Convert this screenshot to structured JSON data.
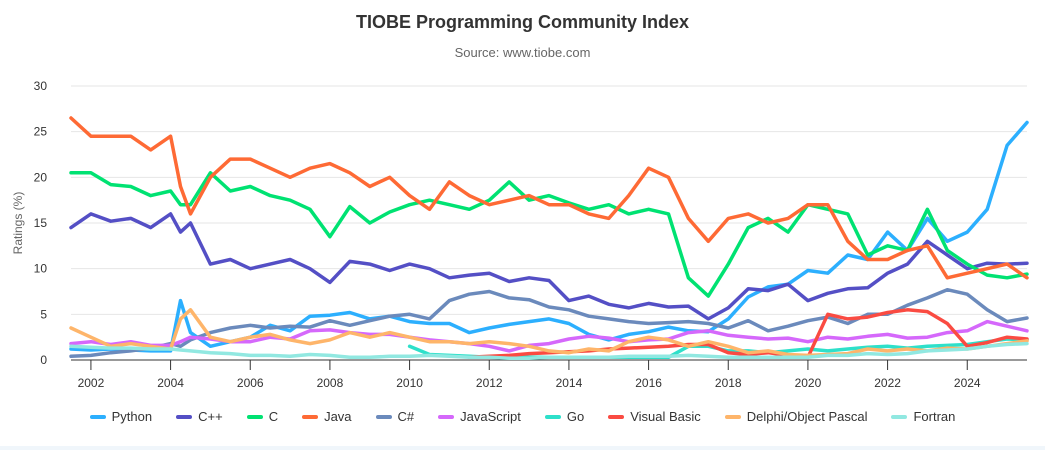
{
  "chart_data": {
    "type": "line",
    "title": "TIOBE Programming Community Index",
    "subtitle": "Source: www.tiobe.com",
    "xlabel": "",
    "ylabel": "Ratings (%)",
    "xlim": [
      2001.5,
      2025.5
    ],
    "ylim": [
      0,
      30
    ],
    "xticks": [
      2002,
      2004,
      2006,
      2008,
      2010,
      2012,
      2014,
      2016,
      2018,
      2020,
      2022,
      2024
    ],
    "yticks": [
      0,
      5,
      10,
      15,
      20,
      25,
      30
    ],
    "grid": true,
    "legend": "bottom",
    "x": [
      2001.5,
      2002,
      2002.5,
      2003,
      2003.5,
      2004,
      2004.25,
      2004.5,
      2005,
      2005.5,
      2006,
      2006.5,
      2007,
      2007.5,
      2008,
      2008.5,
      2009,
      2009.5,
      2010,
      2010.5,
      2011,
      2011.5,
      2012,
      2012.5,
      2013,
      2013.5,
      2014,
      2014.5,
      2015,
      2015.5,
      2016,
      2016.5,
      2017,
      2017.5,
      2018,
      2018.5,
      2019,
      2019.5,
      2020,
      2020.5,
      2021,
      2021.5,
      2022,
      2022.5,
      2023,
      2023.5,
      2024,
      2024.5,
      2025,
      2025.5
    ],
    "series": [
      {
        "name": "Python",
        "color": "#2caffe",
        "values": [
          1.2,
          1.1,
          1.2,
          1.1,
          1.0,
          1.0,
          6.5,
          3.0,
          1.5,
          2.0,
          2.5,
          3.8,
          3.2,
          4.8,
          4.9,
          5.2,
          4.5,
          4.8,
          4.2,
          4.0,
          4.0,
          3.0,
          3.5,
          3.9,
          4.2,
          4.5,
          4.0,
          2.8,
          2.2,
          2.8,
          3.1,
          3.6,
          3.2,
          3.1,
          4.5,
          6.9,
          8.0,
          8.3,
          9.8,
          9.5,
          11.5,
          11.0,
          14.0,
          12.0,
          15.5,
          13.0,
          14.0,
          16.5,
          23.5,
          26.0
        ]
      },
      {
        "name": "C++",
        "color": "#544fc5",
        "values": [
          14.5,
          16.0,
          15.2,
          15.5,
          14.5,
          16.0,
          14.0,
          15.0,
          10.5,
          11.0,
          10.0,
          10.5,
          11.0,
          10.0,
          8.5,
          10.8,
          10.5,
          9.8,
          10.5,
          10.0,
          9.0,
          9.3,
          9.5,
          8.6,
          9.0,
          8.7,
          6.5,
          7.0,
          6.1,
          5.7,
          6.2,
          5.8,
          5.9,
          4.5,
          5.7,
          7.8,
          7.6,
          8.3,
          6.5,
          7.3,
          7.8,
          7.9,
          9.5,
          10.5,
          13.0,
          11.5,
          10.0,
          10.6,
          10.5,
          10.6
        ]
      },
      {
        "name": "C",
        "color": "#00e272",
        "values": [
          20.5,
          20.5,
          19.2,
          19.0,
          18.0,
          18.5,
          17.0,
          17.0,
          20.5,
          18.5,
          19.0,
          18.0,
          17.5,
          16.5,
          13.5,
          16.8,
          15.0,
          16.2,
          17.0,
          17.5,
          17.0,
          16.5,
          17.5,
          19.5,
          17.5,
          18.0,
          17.2,
          16.5,
          17.0,
          16.0,
          16.5,
          16.0,
          9.0,
          7.0,
          10.5,
          14.5,
          15.5,
          14.0,
          17.0,
          16.5,
          16.0,
          11.5,
          12.5,
          12.0,
          16.5,
          12.0,
          10.5,
          9.3,
          9.0,
          9.4
        ]
      },
      {
        "name": "Java",
        "color": "#fe6a35",
        "values": [
          26.5,
          24.5,
          24.5,
          24.5,
          23.0,
          24.5,
          19.0,
          16.0,
          20.0,
          22.0,
          22.0,
          21.0,
          20.0,
          21.0,
          21.5,
          20.5,
          19.0,
          20.0,
          18.0,
          16.5,
          19.5,
          18.0,
          17.0,
          17.5,
          18.0,
          17.0,
          17.0,
          16.0,
          15.5,
          18.0,
          21.0,
          20.0,
          15.5,
          13.0,
          15.5,
          16.0,
          15.0,
          15.5,
          17.0,
          17.0,
          13.0,
          11.0,
          11.0,
          12.0,
          12.5,
          9.0,
          9.5,
          10.0,
          10.5,
          9.0
        ]
      },
      {
        "name": "C#",
        "color": "#6b8abc",
        "values": [
          0.4,
          0.5,
          0.8,
          1.0,
          1.3,
          1.8,
          1.5,
          2.2,
          3.0,
          3.5,
          3.8,
          3.5,
          3.7,
          3.6,
          4.3,
          3.8,
          4.3,
          4.8,
          5.0,
          4.5,
          6.5,
          7.2,
          7.5,
          6.8,
          6.6,
          5.8,
          5.5,
          4.8,
          4.5,
          4.2,
          4.0,
          4.1,
          4.2,
          4.0,
          3.5,
          4.3,
          3.2,
          3.7,
          4.3,
          4.7,
          4.0,
          5.0,
          5.0,
          6.0,
          6.8,
          7.7,
          7.2,
          5.5,
          4.2,
          4.6
        ]
      },
      {
        "name": "JavaScript",
        "color": "#d568fb",
        "values": [
          1.8,
          2.0,
          1.7,
          2.0,
          1.6,
          1.6,
          2.0,
          2.5,
          2.3,
          2.0,
          2.0,
          2.5,
          2.3,
          3.2,
          3.3,
          3.0,
          2.8,
          2.8,
          2.5,
          2.2,
          2.0,
          1.8,
          1.5,
          1.0,
          1.6,
          1.8,
          2.3,
          2.6,
          2.4,
          2.0,
          2.2,
          2.3,
          3.0,
          3.2,
          2.7,
          2.5,
          2.3,
          2.4,
          2.0,
          2.5,
          2.3,
          2.6,
          2.8,
          2.4,
          2.5,
          3.0,
          3.2,
          4.2,
          3.7,
          3.2
        ]
      },
      {
        "name": "Go",
        "color": "#2ee0ca",
        "values": [
          null,
          null,
          null,
          null,
          null,
          null,
          null,
          null,
          null,
          null,
          null,
          null,
          null,
          null,
          null,
          null,
          null,
          null,
          1.5,
          0.6,
          0.5,
          0.4,
          0.3,
          0.3,
          0.3,
          0.3,
          0.3,
          0.3,
          0.3,
          0.3,
          0.3,
          0.3,
          1.5,
          1.5,
          1.0,
          1.0,
          0.8,
          1.0,
          1.2,
          1.0,
          1.2,
          1.4,
          1.5,
          1.3,
          1.5,
          1.6,
          1.7,
          2.0,
          2.3,
          2.2
        ]
      },
      {
        "name": "Visual Basic",
        "color": "#fa4b42",
        "values": [
          null,
          null,
          null,
          null,
          null,
          null,
          null,
          null,
          null,
          null,
          null,
          null,
          null,
          null,
          null,
          null,
          null,
          null,
          null,
          null,
          null,
          0.3,
          0.4,
          0.5,
          0.7,
          0.8,
          0.9,
          1.0,
          1.2,
          1.3,
          1.4,
          1.5,
          1.7,
          1.7,
          0.8,
          0.6,
          0.8,
          0.5,
          0.3,
          5.0,
          4.5,
          4.7,
          5.2,
          5.5,
          5.3,
          4.0,
          1.5,
          1.9,
          2.5,
          2.3
        ]
      },
      {
        "name": "Delphi/Object Pascal",
        "color": "#feb56a",
        "values": [
          3.5,
          2.5,
          1.5,
          1.8,
          1.5,
          1.2,
          4.5,
          5.5,
          2.5,
          2.0,
          2.5,
          2.8,
          2.2,
          1.8,
          2.2,
          3.0,
          2.5,
          3.0,
          2.5,
          2.0,
          2.0,
          1.8,
          2.0,
          1.8,
          1.5,
          1.0,
          0.8,
          1.2,
          1.0,
          2.0,
          2.5,
          2.2,
          1.5,
          2.0,
          1.5,
          0.8,
          1.0,
          0.6,
          0.5,
          0.6,
          0.7,
          1.2,
          1.0,
          1.2,
          1.0,
          1.3,
          1.2,
          1.5,
          1.8,
          2.1
        ]
      },
      {
        "name": "Fortran",
        "color": "#91e8e1",
        "values": [
          1.5,
          1.4,
          1.3,
          1.3,
          1.2,
          1.2,
          1.1,
          1.0,
          0.8,
          0.7,
          0.5,
          0.5,
          0.4,
          0.6,
          0.5,
          0.3,
          0.3,
          0.4,
          0.4,
          0.5,
          0.4,
          0.3,
          0.3,
          0.2,
          0.2,
          0.3,
          0.3,
          0.3,
          0.3,
          0.4,
          0.4,
          0.4,
          0.5,
          0.4,
          0.3,
          0.3,
          0.3,
          0.3,
          0.3,
          0.5,
          0.5,
          0.7,
          0.6,
          0.7,
          1.0,
          1.1,
          1.2,
          1.5,
          1.7,
          1.8
        ]
      }
    ]
  }
}
